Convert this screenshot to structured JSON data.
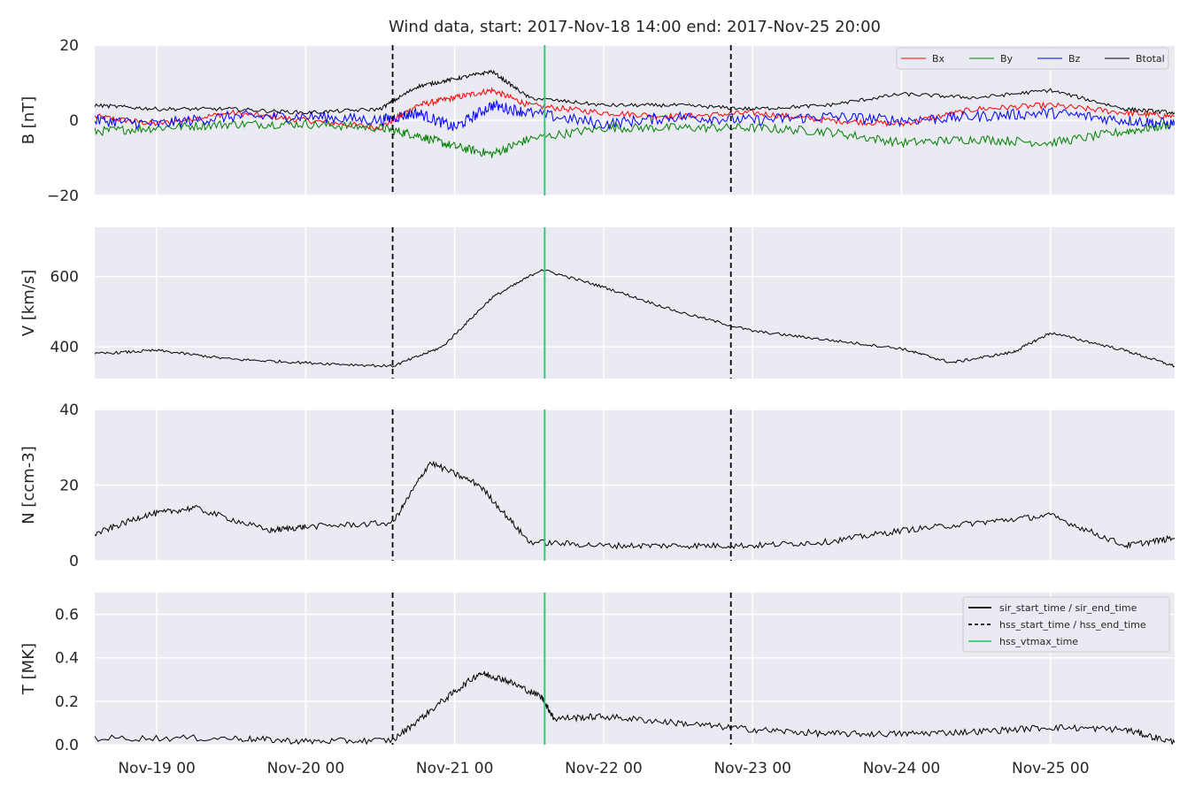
{
  "chart_data": {
    "type": "line",
    "title": "Wind data, start: 2017-Nov-18 14:00  end: 2017-Nov-25 20:00",
    "x_range": [
      "2017-11-18T14:00",
      "2017-11-25T20:00"
    ],
    "x_ticks": [
      {
        "t": "2017-11-19T00:00",
        "label": "Nov-19 00"
      },
      {
        "t": "2017-11-20T00:00",
        "label": "Nov-20 00"
      },
      {
        "t": "2017-11-21T00:00",
        "label": "Nov-21 00"
      },
      {
        "t": "2017-11-22T00:00",
        "label": "Nov-22 00"
      },
      {
        "t": "2017-11-23T00:00",
        "label": "Nov-23 00"
      },
      {
        "t": "2017-11-24T00:00",
        "label": "Nov-24 00"
      },
      {
        "t": "2017-11-25T00:00",
        "label": "Nov-25 00"
      }
    ],
    "grid": true,
    "event_lines": [
      {
        "t": "2017-11-20T14:00",
        "style": "dashed",
        "color": "#000000"
      },
      {
        "t": "2017-11-21T14:30",
        "style": "solid",
        "color": "#2ecc71"
      },
      {
        "t": "2017-11-22T20:30",
        "style": "dashed",
        "color": "#000000"
      }
    ],
    "panels": [
      {
        "id": "b",
        "ylabel": "B [nT]",
        "ylim": [
          -20,
          20
        ],
        "yticks": [
          {
            "v": -20,
            "label": "−20"
          },
          {
            "v": 0,
            "label": "0"
          },
          {
            "v": 20,
            "label": "20"
          }
        ],
        "legend": {
          "placement": "top-right",
          "entries": [
            "Bx",
            "By",
            "Bz",
            "Btotal"
          ]
        },
        "series": [
          {
            "name": "Bx",
            "color": "#ff0000",
            "noise": 0.8,
            "x": [
              "2017-11-18T14:00",
              "2017-11-19T00:00",
              "2017-11-19T12:00",
              "2017-11-20T00:00",
              "2017-11-20T12:00",
              "2017-11-20T18:00",
              "2017-11-21T00:00",
              "2017-11-21T06:00",
              "2017-11-21T12:00",
              "2017-11-22T00:00",
              "2017-11-22T12:00",
              "2017-11-23T00:00",
              "2017-11-23T12:00",
              "2017-11-24T00:00",
              "2017-11-24T12:00",
              "2017-11-25T00:00",
              "2017-11-25T12:00",
              "2017-11-25T20:00"
            ],
            "y": [
              1,
              -1,
              2,
              0,
              -2,
              4,
              6,
              8,
              4,
              2,
              1,
              2,
              0,
              -1,
              3,
              4,
              2,
              1
            ]
          },
          {
            "name": "By",
            "color": "#008000",
            "noise": 1.2,
            "x": [
              "2017-11-18T14:00",
              "2017-11-19T00:00",
              "2017-11-19T12:00",
              "2017-11-20T00:00",
              "2017-11-20T12:00",
              "2017-11-20T18:00",
              "2017-11-21T00:00",
              "2017-11-21T06:00",
              "2017-11-21T12:00",
              "2017-11-22T00:00",
              "2017-11-22T12:00",
              "2017-11-23T00:00",
              "2017-11-23T12:00",
              "2017-11-24T00:00",
              "2017-11-24T12:00",
              "2017-11-25T00:00",
              "2017-11-25T12:00",
              "2017-11-25T20:00"
            ],
            "y": [
              -3,
              -2,
              -1,
              -1,
              -2,
              -4,
              -7,
              -9,
              -5,
              -2,
              -2,
              -2,
              -3,
              -6,
              -5,
              -6,
              -3,
              -1
            ]
          },
          {
            "name": "Bz",
            "color": "#0000ff",
            "noise": 1.5,
            "x": [
              "2017-11-18T14:00",
              "2017-11-19T00:00",
              "2017-11-19T12:00",
              "2017-11-20T00:00",
              "2017-11-20T12:00",
              "2017-11-20T18:00",
              "2017-11-21T00:00",
              "2017-11-21T06:00",
              "2017-11-21T12:00",
              "2017-11-22T00:00",
              "2017-11-22T12:00",
              "2017-11-23T00:00",
              "2017-11-23T12:00",
              "2017-11-24T00:00",
              "2017-11-24T12:00",
              "2017-11-25T00:00",
              "2017-11-25T12:00",
              "2017-11-25T20:00"
            ],
            "y": [
              0,
              -1,
              1,
              1,
              0,
              2,
              -2,
              4,
              2,
              -1,
              1,
              0,
              1,
              0,
              1,
              2,
              0,
              -1
            ]
          },
          {
            "name": "Btotal",
            "color": "#000000",
            "noise": 0.5,
            "x": [
              "2017-11-18T14:00",
              "2017-11-19T00:00",
              "2017-11-19T12:00",
              "2017-11-20T00:00",
              "2017-11-20T12:00",
              "2017-11-20T18:00",
              "2017-11-21T00:00",
              "2017-11-21T06:00",
              "2017-11-21T12:00",
              "2017-11-22T00:00",
              "2017-11-22T12:00",
              "2017-11-23T00:00",
              "2017-11-23T12:00",
              "2017-11-24T00:00",
              "2017-11-24T12:00",
              "2017-11-25T00:00",
              "2017-11-25T12:00",
              "2017-11-25T20:00"
            ],
            "y": [
              4,
              3,
              3,
              2,
              3,
              9,
              11,
              13,
              6,
              4,
              4,
              3,
              4,
              7,
              6,
              8,
              3,
              2
            ]
          }
        ]
      },
      {
        "id": "v",
        "ylabel": "V [km/s]",
        "ylim": [
          310,
          740
        ],
        "yticks": [
          {
            "v": 400,
            "label": "400"
          },
          {
            "v": 600,
            "label": "600"
          }
        ],
        "series": [
          {
            "name": "V",
            "color": "#000000",
            "noise": 4,
            "x": [
              "2017-11-18T14:00",
              "2017-11-19T00:00",
              "2017-11-19T12:00",
              "2017-11-20T00:00",
              "2017-11-20T14:00",
              "2017-11-20T22:00",
              "2017-11-21T06:00",
              "2017-11-21T14:00",
              "2017-11-22T00:00",
              "2017-11-22T12:00",
              "2017-11-23T00:00",
              "2017-11-23T12:00",
              "2017-11-24T00:00",
              "2017-11-24T08:00",
              "2017-11-24T18:00",
              "2017-11-25T00:00",
              "2017-11-25T12:00",
              "2017-11-25T20:00"
            ],
            "y": [
              380,
              390,
              365,
              355,
              345,
              400,
              540,
              620,
              570,
              500,
              445,
              420,
              395,
              355,
              385,
              440,
              390,
              345
            ]
          }
        ]
      },
      {
        "id": "n",
        "ylabel": "N [ccm-3]",
        "ylim": [
          0,
          40
        ],
        "yticks": [
          {
            "v": 0,
            "label": "0"
          },
          {
            "v": 20,
            "label": "20"
          },
          {
            "v": 40,
            "label": "40"
          }
        ],
        "series": [
          {
            "name": "N",
            "color": "#000000",
            "noise": 0.8,
            "x": [
              "2017-11-18T14:00",
              "2017-11-18T22:00",
              "2017-11-19T06:00",
              "2017-11-19T18:00",
              "2017-11-20T00:00",
              "2017-11-20T14:00",
              "2017-11-20T20:00",
              "2017-11-21T04:00",
              "2017-11-21T12:00",
              "2017-11-22T00:00",
              "2017-11-22T12:00",
              "2017-11-23T00:00",
              "2017-11-23T12:00",
              "2017-11-24T00:00",
              "2017-11-24T12:00",
              "2017-11-25T00:00",
              "2017-11-25T12:00",
              "2017-11-25T20:00"
            ],
            "y": [
              7,
              12,
              14,
              8,
              9,
              10,
              26,
              20,
              5,
              4,
              4,
              4,
              5,
              8,
              10,
              12,
              4,
              6
            ]
          }
        ]
      },
      {
        "id": "t",
        "ylabel": "T [MK]",
        "ylim": [
          0,
          0.7
        ],
        "yticks": [
          {
            "v": 0,
            "label": "0.0"
          },
          {
            "v": 0.2,
            "label": "0.2"
          },
          {
            "v": 0.4,
            "label": "0.4"
          },
          {
            "v": 0.6,
            "label": "0.6"
          }
        ],
        "legend": {
          "placement": "top-right",
          "entries": [
            "sir_start_time / sir_end_time",
            "hss_start_time / hss_end_time",
            "hss_vtmax_time"
          ]
        },
        "series": [
          {
            "name": "T",
            "color": "#000000",
            "noise": 0.015,
            "x": [
              "2017-11-18T14:00",
              "2017-11-19T12:00",
              "2017-11-20T00:00",
              "2017-11-20T14:00",
              "2017-11-20T22:00",
              "2017-11-21T04:00",
              "2017-11-21T08:00",
              "2017-11-21T14:00",
              "2017-11-21T16:00",
              "2017-11-22T00:00",
              "2017-11-22T12:00",
              "2017-11-23T00:00",
              "2017-11-23T12:00",
              "2017-11-24T00:00",
              "2017-11-24T12:00",
              "2017-11-25T00:00",
              "2017-11-25T12:00",
              "2017-11-25T20:00"
            ],
            "y": [
              0.03,
              0.03,
              0.015,
              0.02,
              0.2,
              0.33,
              0.3,
              0.22,
              0.12,
              0.13,
              0.1,
              0.07,
              0.05,
              0.05,
              0.06,
              0.08,
              0.07,
              0.01
            ]
          }
        ]
      }
    ]
  }
}
